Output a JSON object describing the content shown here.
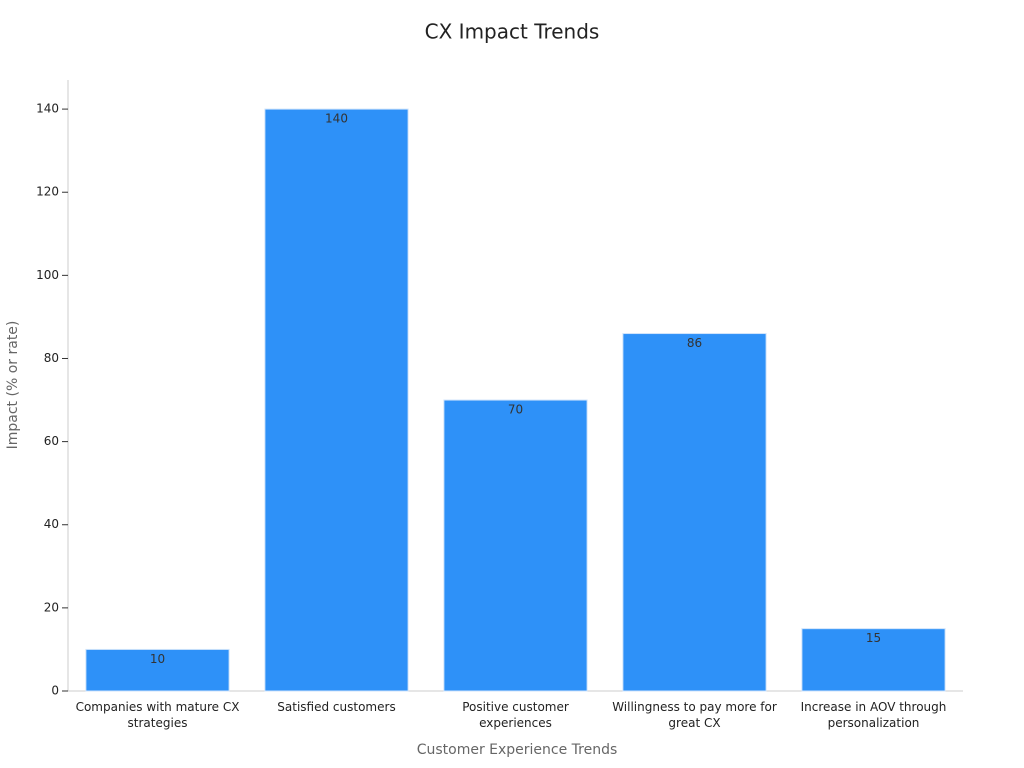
{
  "chart_data": {
    "type": "bar",
    "title": "CX Impact Trends",
    "x_label": "Customer Experience Trends",
    "y_label": "Impact (% or rate)",
    "categories": [
      "Companies with mature CX strategies",
      "Satisfied customers",
      "Positive customer experiences",
      "Willingness to pay more for great CX",
      "Increase in AOV through personalization"
    ],
    "values": [
      10,
      140,
      70,
      86,
      15
    ],
    "color": "#2e91f8",
    "ylim": [
      0,
      147
    ],
    "yticks": [
      0,
      20,
      40,
      60,
      80,
      100,
      120,
      140
    ],
    "grid": false
  }
}
